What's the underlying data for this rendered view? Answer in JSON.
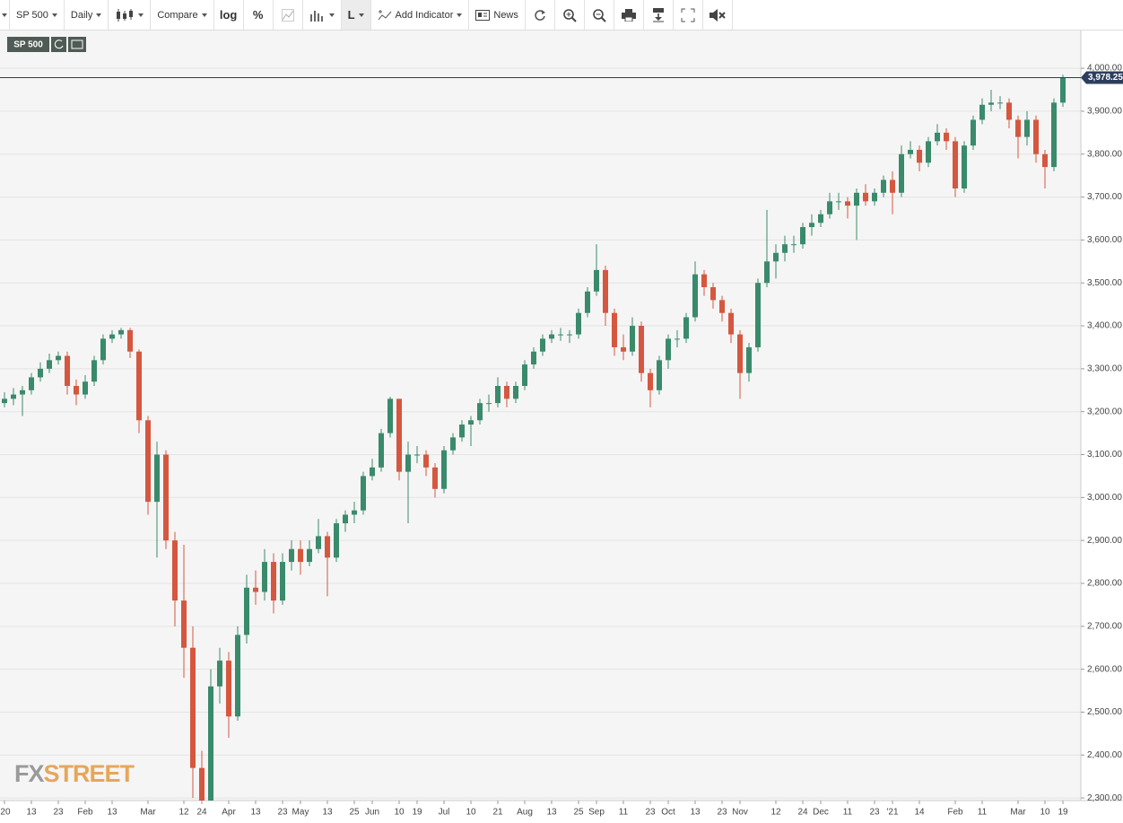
{
  "toolbar": {
    "symbol": "SP 500",
    "interval": "Daily",
    "compare": "Compare",
    "log": "log",
    "percent": "%",
    "line": "L",
    "add_indicator": "Add Indicator",
    "news": "News"
  },
  "watermark": {
    "prefix": "FX",
    "suffix": "STREET"
  },
  "chart_data": {
    "type": "candlestick",
    "symbol": "SP 500",
    "categories": [
      "'20",
      null,
      null,
      "13",
      null,
      null,
      "23",
      null,
      null,
      "Feb",
      null,
      null,
      "13",
      null,
      null,
      null,
      "Mar",
      null,
      null,
      null,
      "12",
      null,
      "24",
      null,
      null,
      "Apr",
      null,
      null,
      "13",
      null,
      null,
      "23",
      null,
      "May",
      null,
      null,
      "13",
      null,
      null,
      "25",
      null,
      "Jun",
      null,
      null,
      "10",
      null,
      "19",
      null,
      null,
      "Jul",
      null,
      null,
      "10",
      null,
      null,
      "21",
      null,
      null,
      "Aug",
      null,
      null,
      "13",
      null,
      null,
      "25",
      null,
      "Sep",
      null,
      null,
      "11",
      null,
      null,
      "23",
      null,
      "Oct",
      null,
      null,
      "13",
      null,
      null,
      "23",
      null,
      "Nov",
      null,
      null,
      null,
      "12",
      null,
      null,
      "24",
      null,
      "Dec",
      null,
      null,
      "11",
      null,
      null,
      "23",
      null,
      "'21",
      null,
      null,
      "14",
      null,
      null,
      null,
      "Feb",
      null,
      null,
      "11",
      null,
      null,
      null,
      "Mar",
      null,
      null,
      "10",
      null,
      "19"
    ],
    "open": [
      3220,
      3230,
      3240,
      3250,
      3280,
      3300,
      3320,
      3330,
      3260,
      3240,
      3270,
      3320,
      3370,
      3380,
      3390,
      3340,
      3180,
      2990,
      3100,
      2900,
      2760,
      2650,
      2370,
      2280,
      2560,
      2620,
      2490,
      2680,
      2790,
      2780,
      2850,
      2760,
      2850,
      2880,
      2850,
      2880,
      2910,
      2860,
      2940,
      2960,
      2970,
      3050,
      3070,
      3150,
      3230,
      3060,
      3100,
      3100,
      3070,
      3020,
      3110,
      3140,
      3170,
      3180,
      3220,
      3220,
      3260,
      3230,
      3260,
      3310,
      3340,
      3370,
      3380,
      3380,
      3380,
      3430,
      3480,
      3530,
      3430,
      3350,
      3340,
      3400,
      3290,
      3250,
      3320,
      3370,
      3370,
      3420,
      3520,
      3490,
      3460,
      3430,
      3380,
      3290,
      3350,
      3500,
      3550,
      3570,
      3590,
      3590,
      3630,
      3640,
      3660,
      3690,
      3690,
      3680,
      3710,
      3690,
      3710,
      3740,
      3710,
      3800,
      3810,
      3780,
      3830,
      3850,
      3830,
      3720,
      3820,
      3880,
      3915,
      3920,
      3920,
      3880,
      3840,
      3880,
      3800,
      3770,
      3920
    ],
    "high": [
      3245,
      3255,
      3260,
      3290,
      3315,
      3335,
      3340,
      3340,
      3275,
      3285,
      3330,
      3380,
      3390,
      3395,
      3395,
      3345,
      3190,
      3130,
      3110,
      2920,
      2890,
      2700,
      2410,
      2600,
      2650,
      2640,
      2700,
      2820,
      2830,
      2880,
      2870,
      2870,
      2900,
      2900,
      2900,
      2950,
      2920,
      2950,
      2970,
      2990,
      3060,
      3090,
      3160,
      3235,
      3230,
      3130,
      3120,
      3110,
      3080,
      3120,
      3150,
      3180,
      3190,
      3230,
      3240,
      3280,
      3270,
      3270,
      3320,
      3350,
      3380,
      3390,
      3395,
      3390,
      3440,
      3490,
      3590,
      3540,
      3440,
      3380,
      3420,
      3410,
      3300,
      3330,
      3380,
      3390,
      3430,
      3550,
      3530,
      3500,
      3470,
      3440,
      3390,
      3360,
      3510,
      3670,
      3590,
      3610,
      3610,
      3640,
      3660,
      3670,
      3710,
      3710,
      3700,
      3720,
      3730,
      3720,
      3750,
      3760,
      3820,
      3830,
      3820,
      3840,
      3870,
      3860,
      3840,
      3830,
      3890,
      3930,
      3950,
      3935,
      3930,
      3890,
      3900,
      3890,
      3810,
      3930,
      3985
    ],
    "low": [
      3210,
      3215,
      3190,
      3240,
      3270,
      3290,
      3310,
      3240,
      3215,
      3230,
      3260,
      3310,
      3360,
      3370,
      3325,
      3150,
      2960,
      2860,
      2880,
      2700,
      2580,
      2300,
      2240,
      2250,
      2520,
      2440,
      2480,
      2660,
      2750,
      2760,
      2730,
      2750,
      2830,
      2820,
      2840,
      2870,
      2770,
      2850,
      2920,
      2940,
      2960,
      3040,
      3060,
      3140,
      3040,
      2940,
      3080,
      3050,
      3000,
      3010,
      3100,
      3130,
      3120,
      3170,
      3200,
      3210,
      3210,
      3220,
      3250,
      3300,
      3330,
      3360,
      3365,
      3360,
      3370,
      3420,
      3470,
      3400,
      3330,
      3320,
      3330,
      3270,
      3210,
      3240,
      3300,
      3350,
      3360,
      3410,
      3470,
      3440,
      3410,
      3360,
      3230,
      3270,
      3340,
      3490,
      3510,
      3550,
      3570,
      3580,
      3610,
      3630,
      3650,
      3670,
      3650,
      3600,
      3680,
      3680,
      3700,
      3660,
      3700,
      3790,
      3760,
      3770,
      3820,
      3810,
      3700,
      3710,
      3810,
      3870,
      3900,
      3905,
      3860,
      3790,
      3820,
      3780,
      3720,
      3760,
      3910
    ],
    "close": [
      3230,
      3240,
      3250,
      3280,
      3300,
      3320,
      3330,
      3260,
      3240,
      3270,
      3320,
      3370,
      3380,
      3390,
      3340,
      3180,
      2990,
      3100,
      2900,
      2760,
      2650,
      2370,
      2280,
      2560,
      2620,
      2490,
      2680,
      2790,
      2780,
      2850,
      2760,
      2850,
      2880,
      2850,
      2880,
      2910,
      2860,
      2940,
      2960,
      2970,
      3050,
      3070,
      3150,
      3230,
      3060,
      3100,
      3100,
      3070,
      3020,
      3110,
      3140,
      3170,
      3180,
      3220,
      3220,
      3260,
      3230,
      3260,
      3310,
      3340,
      3370,
      3380,
      3380,
      3380,
      3430,
      3480,
      3530,
      3430,
      3350,
      3340,
      3400,
      3290,
      3250,
      3320,
      3370,
      3370,
      3420,
      3520,
      3490,
      3460,
      3430,
      3380,
      3290,
      3350,
      3500,
      3550,
      3570,
      3590,
      3590,
      3630,
      3640,
      3660,
      3690,
      3690,
      3680,
      3710,
      3690,
      3710,
      3740,
      3710,
      3800,
      3810,
      3780,
      3830,
      3850,
      3830,
      3720,
      3820,
      3880,
      3915,
      3920,
      3920,
      3880,
      3840,
      3880,
      3800,
      3770,
      3920,
      3978.25
    ],
    "up_color": "#3a8a6c",
    "down_color": "#d5573f",
    "ylim": [
      2294,
      4088
    ],
    "yticks": [
      {
        "value": 2300,
        "label": "2,300.00"
      },
      {
        "value": 2400,
        "label": "2,400.00"
      },
      {
        "value": 2500,
        "label": "2,500.00"
      },
      {
        "value": 2600,
        "label": "2,600.00"
      },
      {
        "value": 2700,
        "label": "2,700.00"
      },
      {
        "value": 2800,
        "label": "2,800.00"
      },
      {
        "value": 2900,
        "label": "2,900.00"
      },
      {
        "value": 3000,
        "label": "3,000.00"
      },
      {
        "value": 3100,
        "label": "3,100.00"
      },
      {
        "value": 3200,
        "label": "3,200.00"
      },
      {
        "value": 3300,
        "label": "3,300.00"
      },
      {
        "value": 3400,
        "label": "3,400.00"
      },
      {
        "value": 3500,
        "label": "3,500.00"
      },
      {
        "value": 3600,
        "label": "3,600.00"
      },
      {
        "value": 3700,
        "label": "3,700.00"
      },
      {
        "value": 3800,
        "label": "3,800.00"
      },
      {
        "value": 3900,
        "label": "3,900.00"
      },
      {
        "value": 4000,
        "label": "4,000.00"
      }
    ],
    "grid": true,
    "last_price": {
      "value": 3978.25,
      "label": "3,978.25"
    }
  }
}
